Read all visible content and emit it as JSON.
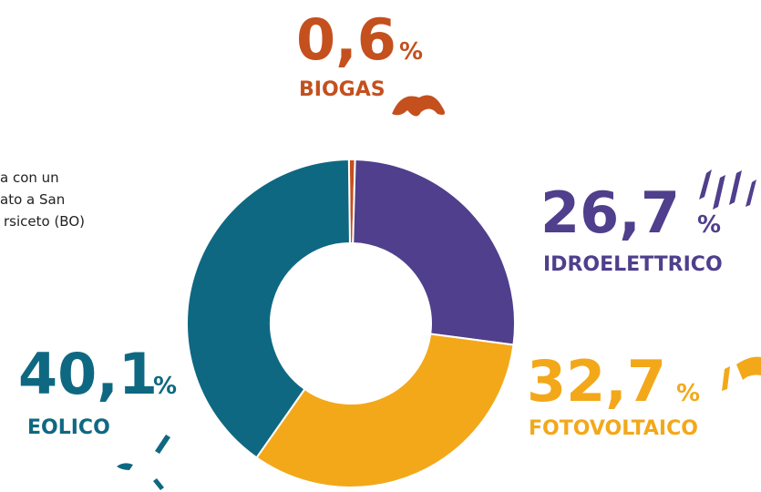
{
  "chart_data": {
    "type": "donut",
    "categories": [
      "BIOGAS",
      "IDROELETTRICO",
      "FOTOVOLTAICO",
      "EOLICO"
    ],
    "values": [
      0.6,
      26.7,
      32.7,
      40.1
    ],
    "value_labels": [
      "0,6",
      "26,7",
      "32,7",
      "40,1"
    ],
    "value_unit": "%",
    "colors": [
      "#c4501e",
      "#4f3f8c",
      "#f3a81a",
      "#0f6882"
    ],
    "annotation": [
      "a con un",
      "ato a San",
      "rsiceto (BO)"
    ]
  }
}
